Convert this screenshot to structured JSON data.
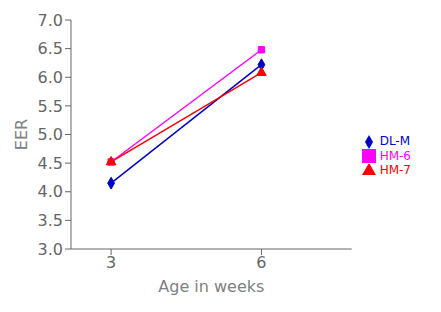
{
  "chart_data": {
    "type": "line",
    "x": [
      3,
      6
    ],
    "series": [
      {
        "name": "DL-M",
        "color": "#0000CC",
        "marker": "diamond",
        "values": [
          4.15,
          6.22
        ]
      },
      {
        "name": "HM-6",
        "color": "#FF00FF",
        "marker": "square",
        "values": [
          4.52,
          6.48
        ]
      },
      {
        "name": "HM-7",
        "color": "#FF0000",
        "marker": "triangle",
        "values": [
          4.52,
          6.08
        ]
      }
    ],
    "xlabel": "Age in weeks",
    "ylabel": "EER",
    "xlim": [
      2.2,
      7.8
    ],
    "ylim": [
      3.0,
      7.0
    ],
    "xticks": [
      3,
      6
    ],
    "yticks": [
      {
        "value": 3,
        "label": "3.0"
      },
      3.5,
      {
        "value": 4,
        "label": "4.0"
      },
      4.5,
      {
        "value": 5,
        "label": "5.0"
      },
      5.5,
      {
        "value": 6,
        "label": "6.0"
      },
      6.5,
      {
        "value": 7,
        "label": "7.0"
      }
    ],
    "grid": false,
    "legend": "right"
  }
}
